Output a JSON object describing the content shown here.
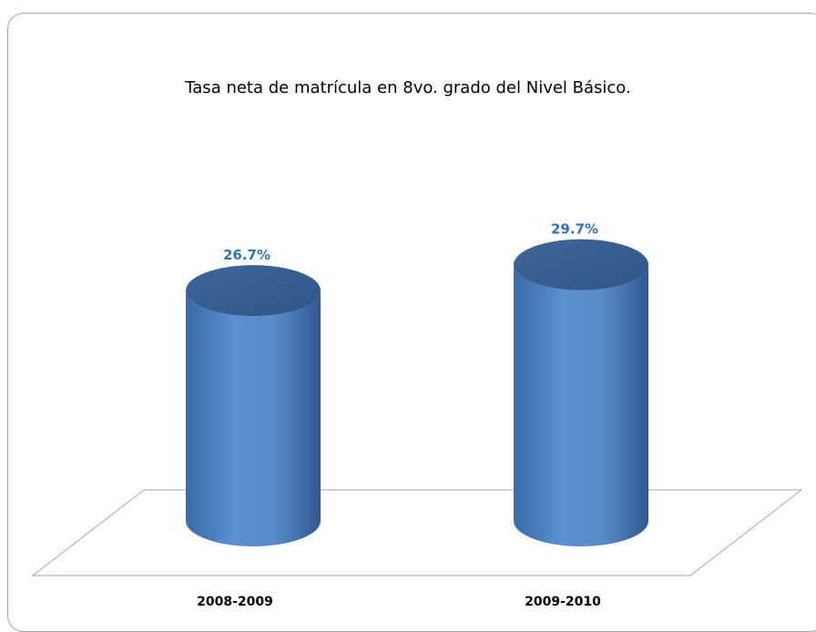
{
  "chart_data": {
    "type": "bar",
    "title": "Tasa neta de matrícula en 8vo. grado del Nivel Básico.",
    "categories": [
      "2008-2009",
      "2009-2010"
    ],
    "series": [
      {
        "values": [
          26.7,
          29.7
        ],
        "labels": [
          "26.7%",
          "29.7%"
        ]
      }
    ],
    "xlabel": "",
    "ylabel": "",
    "ylim": [
      0,
      30
    ],
    "grid": false,
    "legend": "none",
    "colors": {
      "bar_body": "#4f81bd",
      "bar_top": "#365f91",
      "data_label": "#2e75b6",
      "floor_line": "#a6a6a6",
      "frame": "#a6a6a6"
    }
  }
}
